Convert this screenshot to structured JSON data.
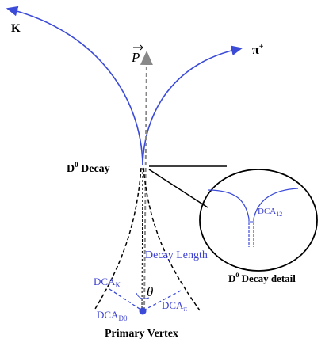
{
  "labels": {
    "kaon": {
      "base": "K",
      "sup": "-"
    },
    "pion": {
      "base": "π",
      "sup": "+"
    },
    "momentum": "P",
    "decay": {
      "base": "D",
      "sup": "0",
      "rest": " Decay"
    },
    "detail": {
      "base": "D",
      "sup": "0",
      "rest": " Decay detail"
    },
    "dca12": {
      "base": "DCA",
      "sub": "12"
    },
    "decay_length": "Decay Length",
    "dca_k": {
      "base": "DCA",
      "sub": "K"
    },
    "theta": "θ",
    "dca_pi": {
      "base": "DCA",
      "sub": "π"
    },
    "dca_d0": {
      "base": "DCA",
      "sub": "D0"
    },
    "primary_vertex": "Primary Vertex"
  }
}
